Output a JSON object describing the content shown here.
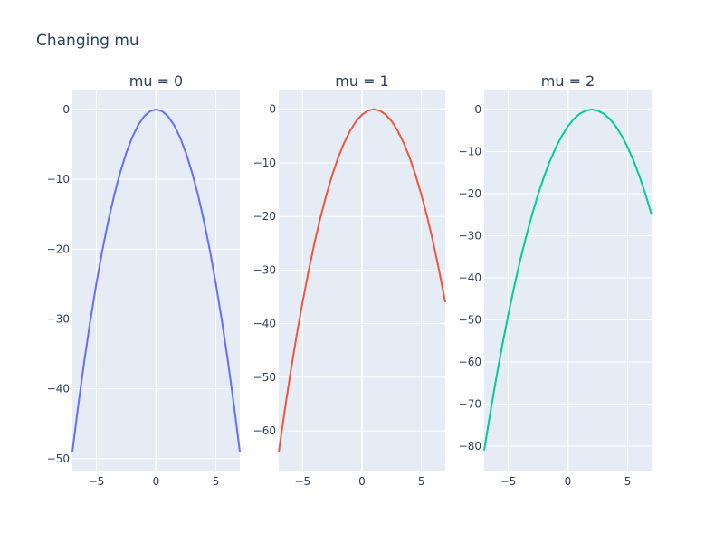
{
  "chart_data": [
    {
      "type": "line",
      "title": "mu = 0",
      "xlim": [
        -7,
        7
      ],
      "ylim": [
        -51.7,
        2.7
      ],
      "xticks": [
        -5,
        0,
        5
      ],
      "yticks": [
        0,
        -10,
        -20,
        -30,
        -40,
        -50
      ],
      "grid": true,
      "color": "#636efa",
      "x": [
        -7,
        -6.5,
        -6,
        -5.5,
        -5,
        -4.5,
        -4,
        -3.5,
        -3,
        -2.5,
        -2,
        -1.5,
        -1,
        -0.5,
        0,
        0.5,
        1,
        1.5,
        2,
        2.5,
        3,
        3.5,
        4,
        4.5,
        5,
        5.5,
        6,
        6.5,
        7
      ],
      "y": [
        -49,
        -42.25,
        -36,
        -30.25,
        -25,
        -20.25,
        -16,
        -12.25,
        -9,
        -6.25,
        -4,
        -2.25,
        -1,
        -0.25,
        0,
        -0.25,
        -1,
        -2.25,
        -4,
        -6.25,
        -9,
        -12.25,
        -16,
        -20.25,
        -25,
        -30.25,
        -36,
        -42.25,
        -49
      ]
    },
    {
      "type": "line",
      "title": "mu = 1",
      "xlim": [
        -7,
        7
      ],
      "ylim": [
        -67.4,
        3.5
      ],
      "xticks": [
        -5,
        0,
        5
      ],
      "yticks": [
        0,
        -10,
        -20,
        -30,
        -40,
        -50,
        -60
      ],
      "grid": true,
      "color": "#ef553b",
      "x": [
        -7,
        -6.5,
        -6,
        -5.5,
        -5,
        -4.5,
        -4,
        -3.5,
        -3,
        -2.5,
        -2,
        -1.5,
        -1,
        -0.5,
        0,
        0.5,
        1,
        1.5,
        2,
        2.5,
        3,
        3.5,
        4,
        4.5,
        5,
        5.5,
        6,
        6.5,
        7
      ],
      "y": [
        -64,
        -56.25,
        -49,
        -42.25,
        -36,
        -30.25,
        -25,
        -20.25,
        -16,
        -12.25,
        -9,
        -6.25,
        -4,
        -2.25,
        -1,
        -0.25,
        0,
        -0.25,
        -1,
        -2.25,
        -4,
        -6.25,
        -9,
        -12.25,
        -16,
        -20.25,
        -25,
        -30.25,
        -36
      ]
    },
    {
      "type": "line",
      "title": "mu = 2",
      "xlim": [
        -7,
        7
      ],
      "ylim": [
        -85.8,
        4.5
      ],
      "xticks": [
        -5,
        0,
        5
      ],
      "yticks": [
        0,
        -10,
        -20,
        -30,
        -40,
        -50,
        -60,
        -70,
        -80
      ],
      "grid": true,
      "color": "#00cc96",
      "x": [
        -7,
        -6.5,
        -6,
        -5.5,
        -5,
        -4.5,
        -4,
        -3.5,
        -3,
        -2.5,
        -2,
        -1.5,
        -1,
        -0.5,
        0,
        0.5,
        1,
        1.5,
        2,
        2.5,
        3,
        3.5,
        4,
        4.5,
        5,
        5.5,
        6,
        6.5,
        7
      ],
      "y": [
        -81,
        -72.25,
        -64,
        -56.25,
        -49,
        -42.25,
        -36,
        -30.25,
        -25,
        -20.25,
        -16,
        -12.25,
        -9,
        -6.25,
        -4,
        -2.25,
        -1,
        -0.25,
        0,
        -0.25,
        -1,
        -2.25,
        -4,
        -6.25,
        -9,
        -12.25,
        -16,
        -20.25,
        -25
      ]
    }
  ],
  "figure": {
    "title": "Changing mu",
    "plot_bg": "#e5ecf6",
    "grid_color": "#ffffff"
  }
}
